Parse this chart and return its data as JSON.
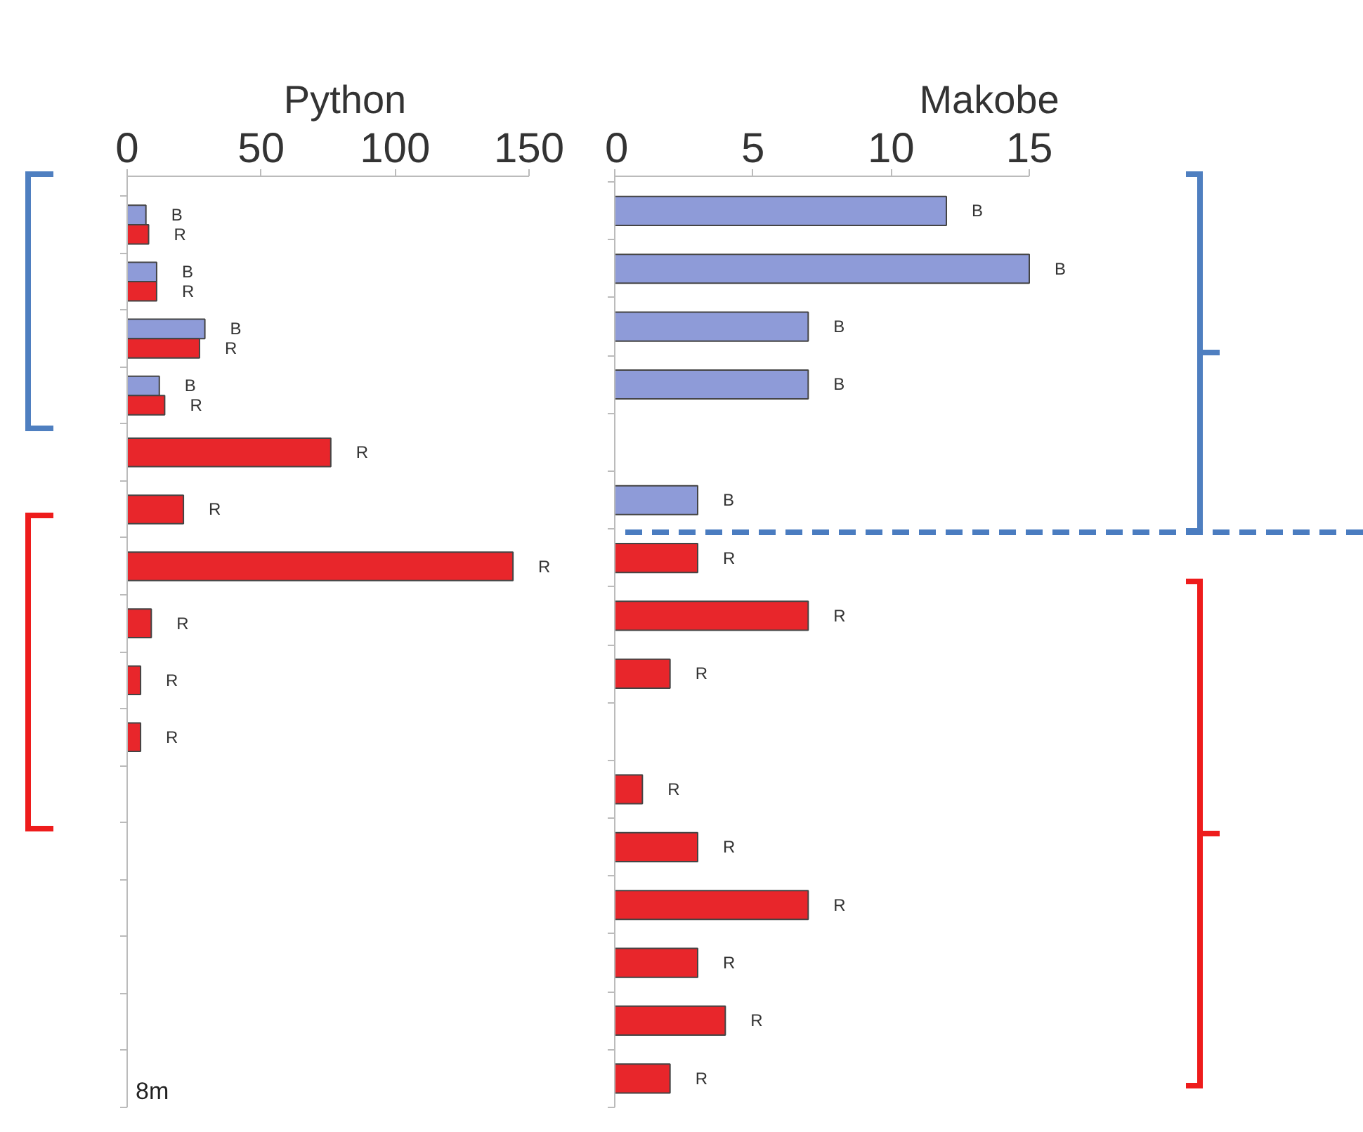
{
  "chart_data": [
    {
      "type": "bar",
      "orientation": "horizontal",
      "title": "Python",
      "categories": [
        null,
        null,
        null,
        null,
        null,
        null,
        null,
        null,
        null,
        null,
        null,
        null,
        null,
        null,
        null,
        null
      ],
      "xlim": [
        0,
        150
      ],
      "xticks": [
        0,
        50,
        100,
        150
      ],
      "tick_labels": "x",
      "series": [
        {
          "color": "#8e9bd8",
          "values": [
            7,
            11,
            29,
            12,
            null,
            null,
            null,
            null,
            null,
            null,
            null,
            null,
            null,
            null,
            null,
            null
          ],
          "value_labels": [
            "B",
            "B",
            "B",
            "B",
            null,
            null,
            null,
            null,
            null,
            null,
            null,
            null,
            null,
            null,
            null,
            null
          ]
        },
        {
          "color": "#e8262b",
          "values": [
            8,
            11,
            27,
            14,
            76,
            21,
            144,
            9,
            5,
            5,
            null,
            null,
            null,
            null,
            null,
            null
          ],
          "value_labels": [
            "R",
            "R",
            "R",
            "R",
            "R",
            "R",
            "R",
            "R",
            "R",
            "R",
            null,
            null,
            null,
            null,
            null,
            null
          ]
        }
      ],
      "annotations": [
        "8m"
      ]
    },
    {
      "type": "bar",
      "orientation": "horizontal",
      "title": "Makobe",
      "categories": [
        null,
        null,
        null,
        null,
        null,
        null,
        null,
        null,
        null,
        null,
        null,
        null,
        null,
        null,
        null,
        null
      ],
      "xlim": [
        0,
        15
      ],
      "xticks": [
        0,
        5,
        10,
        15
      ],
      "tick_labels": "x",
      "series": [
        {
          "color": "#8e9bd8",
          "values": [
            12,
            15,
            7,
            7,
            null,
            3,
            null,
            null,
            null,
            null,
            null,
            null,
            null,
            null,
            null,
            null
          ],
          "value_labels": [
            "B",
            "B",
            "B",
            "B",
            null,
            "B",
            null,
            null,
            null,
            null,
            null,
            null,
            null,
            null,
            null,
            null
          ]
        },
        {
          "color": "#e8262b",
          "values": [
            null,
            null,
            null,
            null,
            null,
            null,
            3,
            7,
            2,
            null,
            1,
            3,
            7,
            3,
            4,
            2
          ],
          "value_labels": [
            null,
            null,
            null,
            null,
            null,
            null,
            "R",
            "R",
            "R",
            null,
            "R",
            "R",
            "R",
            "R",
            "R",
            "R"
          ]
        }
      ]
    }
  ]
}
